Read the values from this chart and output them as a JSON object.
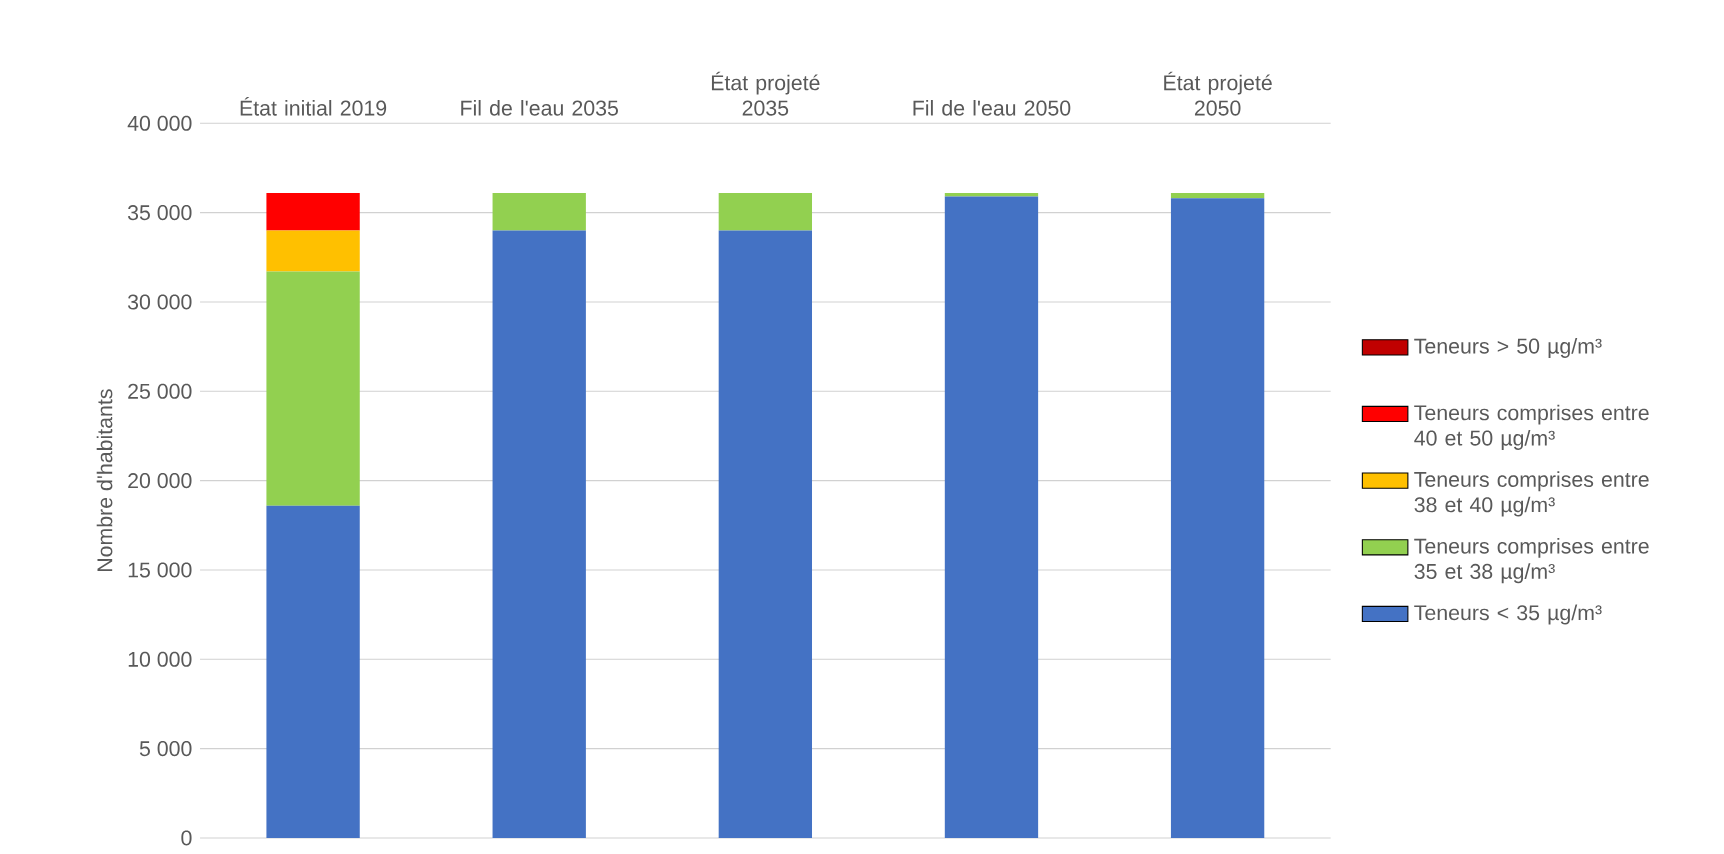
{
  "chart_data": {
    "type": "bar",
    "stacked": true,
    "ylabel": "Nombre d'habitants",
    "categories": [
      "État initial 2019",
      "Fil de l'eau 2035",
      "État projeté 2035",
      "Fil de l'eau 2050",
      "État projeté 2050"
    ],
    "series": [
      {
        "name": "Teneurs < 35 µg/m³",
        "color": "#4472c4",
        "values": [
          18600,
          34000,
          34000,
          35900,
          35800
        ]
      },
      {
        "name": "Teneurs comprises entre 35 et 38 µg/m³",
        "color": "#92d050",
        "values": [
          13100,
          2100,
          2100,
          200,
          300
        ]
      },
      {
        "name": "Teneurs comprises entre 38 et 40 µg/m³",
        "color": "#ffc000",
        "values": [
          2300,
          0,
          0,
          0,
          0
        ]
      },
      {
        "name": "Teneurs comprises entre 40 et 50 µg/m³",
        "color": "#ff0000",
        "values": [
          2100,
          0,
          0,
          0,
          0
        ]
      },
      {
        "name": "Teneurs > 50 µg/m³",
        "color": "#c00000",
        "values": [
          0,
          0,
          0,
          0,
          0
        ]
      }
    ],
    "ylim": [
      0,
      40000
    ],
    "yticks": [
      {
        "value": 0,
        "label": "0"
      },
      {
        "value": 5000,
        "label": "5 000"
      },
      {
        "value": 10000,
        "label": "10 000"
      },
      {
        "value": 15000,
        "label": "15 000"
      },
      {
        "value": 20000,
        "label": "20 000"
      },
      {
        "value": 25000,
        "label": "25 000"
      },
      {
        "value": 30000,
        "label": "30 000"
      },
      {
        "value": 35000,
        "label": "35 000"
      },
      {
        "value": 40000,
        "label": "40 000"
      }
    ],
    "grid": "y",
    "legend": "right"
  }
}
